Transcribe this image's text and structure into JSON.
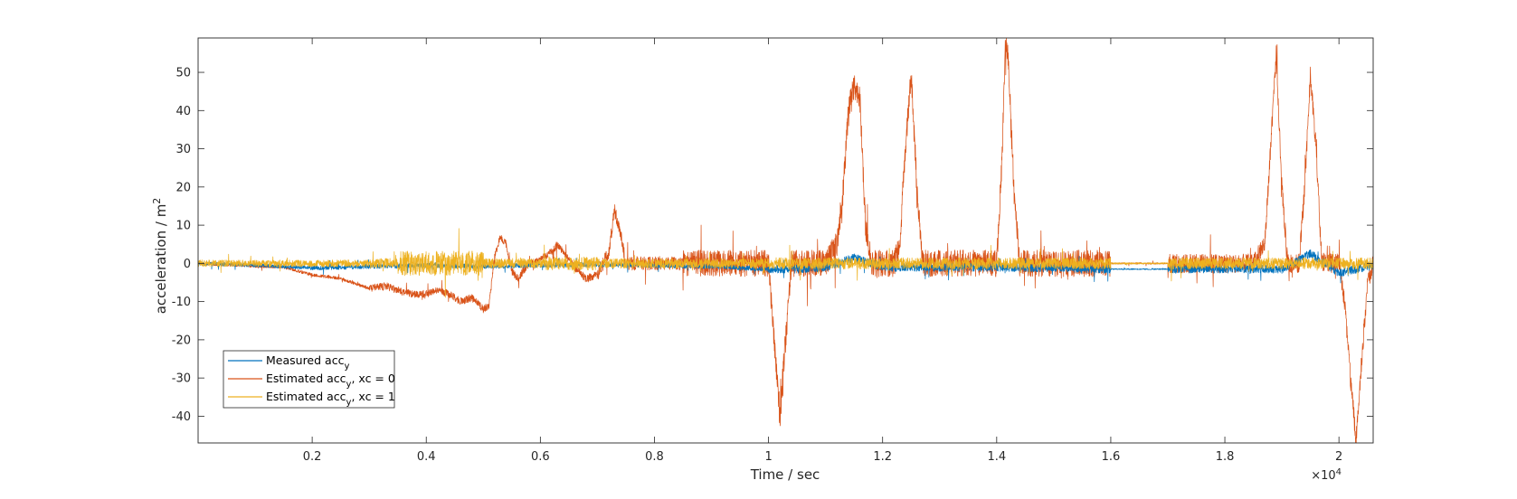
{
  "chart_data": {
    "type": "line",
    "xlabel": "Time / sec",
    "ylabel_base": "acceleration / m",
    "ylabel_sup": "2",
    "x_exponent_prefix": "×10",
    "x_exponent_power": "4",
    "xlim": [
      0,
      2.06
    ],
    "ylim": [
      -47,
      59
    ],
    "xticks": [
      0.2,
      0.4,
      0.6,
      0.8,
      1,
      1.2,
      1.4,
      1.6,
      1.8,
      2
    ],
    "xtick_labels": [
      "0.2",
      "0.4",
      "0.6",
      "0.8",
      "1",
      "1.2",
      "1.4",
      "1.6",
      "1.8",
      "2"
    ],
    "yticks": [
      -40,
      -30,
      -20,
      -10,
      0,
      10,
      20,
      30,
      40,
      50
    ],
    "ytick_labels": [
      "-40",
      "-30",
      "-20",
      "-10",
      "0",
      "10",
      "20",
      "30",
      "40",
      "50"
    ],
    "grid": false,
    "legend_position": "bottom-left",
    "legend": [
      {
        "base": "Measured acc",
        "sub": "y",
        "suffix": ""
      },
      {
        "base": "Estimated acc",
        "sub": "y",
        "suffix": ", xc = 0"
      },
      {
        "base": "Estimated acc",
        "sub": "y",
        "suffix": ", xc = 1"
      }
    ],
    "series": [
      {
        "color": "#0072BD",
        "noise_segments": [
          [
            0.0,
            0.2,
            0.5
          ],
          [
            0.2,
            1.0,
            0.6
          ],
          [
            1.0,
            1.6,
            1.1
          ],
          [
            1.6,
            1.7,
            0.15
          ],
          [
            1.7,
            2.06,
            1.1
          ]
        ],
        "points": [
          [
            0.0,
            0.0
          ],
          [
            0.1,
            -0.5
          ],
          [
            0.2,
            -1.2
          ],
          [
            0.3,
            -0.8
          ],
          [
            0.4,
            -0.5
          ],
          [
            0.5,
            -0.8
          ],
          [
            0.6,
            -0.5
          ],
          [
            0.7,
            -0.3
          ],
          [
            0.8,
            -0.5
          ],
          [
            0.9,
            -0.8
          ],
          [
            1.0,
            -1.5
          ],
          [
            1.05,
            -1.5
          ],
          [
            1.1,
            -1.0
          ],
          [
            1.15,
            1.5
          ],
          [
            1.2,
            -1.0
          ],
          [
            1.3,
            -1.0
          ],
          [
            1.4,
            -1.0
          ],
          [
            1.5,
            -1.2
          ],
          [
            1.55,
            -1.5
          ],
          [
            1.6,
            -1.5
          ],
          [
            1.7,
            -1.5
          ],
          [
            1.8,
            -1.5
          ],
          [
            1.9,
            -1.5
          ],
          [
            1.95,
            2.5
          ],
          [
            2.0,
            -2.5
          ],
          [
            2.06,
            -0.5
          ]
        ]
      },
      {
        "color": "#D95319",
        "noise_segments": [
          [
            0.0,
            0.3,
            0.4
          ],
          [
            0.3,
            0.7,
            1.0
          ],
          [
            0.7,
            0.85,
            1.8
          ],
          [
            0.85,
            1.6,
            3.5
          ],
          [
            1.6,
            1.7,
            0.2
          ],
          [
            1.7,
            2.06,
            2.5
          ]
        ],
        "points": [
          [
            0.0,
            0.0
          ],
          [
            0.15,
            -1.0
          ],
          [
            0.2,
            -3.0
          ],
          [
            0.25,
            -4.0
          ],
          [
            0.3,
            -6.5
          ],
          [
            0.33,
            -6.0
          ],
          [
            0.36,
            -7.5
          ],
          [
            0.38,
            -8.0
          ],
          [
            0.4,
            -8.0
          ],
          [
            0.42,
            -7.0
          ],
          [
            0.44,
            -8.0
          ],
          [
            0.46,
            -10.0
          ],
          [
            0.48,
            -9.0
          ],
          [
            0.5,
            -12.0
          ],
          [
            0.51,
            -11.0
          ],
          [
            0.52,
            2.0
          ],
          [
            0.53,
            7.0
          ],
          [
            0.54,
            5.0
          ],
          [
            0.55,
            -2.0
          ],
          [
            0.56,
            -4.0
          ],
          [
            0.58,
            0.0
          ],
          [
            0.6,
            1.0
          ],
          [
            0.62,
            3.0
          ],
          [
            0.63,
            5.0
          ],
          [
            0.64,
            3.0
          ],
          [
            0.66,
            -1.0
          ],
          [
            0.68,
            -4.0
          ],
          [
            0.7,
            -3.0
          ],
          [
            0.72,
            3.0
          ],
          [
            0.73,
            14.0
          ],
          [
            0.74,
            8.0
          ],
          [
            0.75,
            0.0
          ],
          [
            0.8,
            0.0
          ],
          [
            0.9,
            0.0
          ],
          [
            1.0,
            0.0
          ],
          [
            1.01,
            -20.0
          ],
          [
            1.02,
            -40.0
          ],
          [
            1.03,
            -20.0
          ],
          [
            1.04,
            0.0
          ],
          [
            1.1,
            0.0
          ],
          [
            1.12,
            5.0
          ],
          [
            1.13,
            18.0
          ],
          [
            1.14,
            40.0
          ],
          [
            1.15,
            46.0
          ],
          [
            1.16,
            44.0
          ],
          [
            1.17,
            10.0
          ],
          [
            1.18,
            0.0
          ],
          [
            1.22,
            0.0
          ],
          [
            1.23,
            5.0
          ],
          [
            1.24,
            30.0
          ],
          [
            1.25,
            50.0
          ],
          [
            1.26,
            20.0
          ],
          [
            1.27,
            0.0
          ],
          [
            1.4,
            0.0
          ],
          [
            1.41,
            30.0
          ],
          [
            1.415,
            59.0
          ],
          [
            1.42,
            55.0
          ],
          [
            1.43,
            20.0
          ],
          [
            1.44,
            0.0
          ],
          [
            1.6,
            0.0
          ],
          [
            1.7,
            0.0
          ],
          [
            1.85,
            0.0
          ],
          [
            1.87,
            5.0
          ],
          [
            1.88,
            30.0
          ],
          [
            1.89,
            55.0
          ],
          [
            1.9,
            20.0
          ],
          [
            1.91,
            0.0
          ],
          [
            1.93,
            0.0
          ],
          [
            1.94,
            20.0
          ],
          [
            1.95,
            50.0
          ],
          [
            1.96,
            30.0
          ],
          [
            1.97,
            0.0
          ],
          [
            2.0,
            0.0
          ],
          [
            2.01,
            -10.0
          ],
          [
            2.02,
            -30.0
          ],
          [
            2.03,
            -46.0
          ],
          [
            2.04,
            -25.0
          ],
          [
            2.05,
            -5.0
          ],
          [
            2.06,
            0.0
          ]
        ]
      },
      {
        "color": "#EDB120",
        "noise_segments": [
          [
            0.0,
            0.3,
            0.9
          ],
          [
            0.3,
            0.35,
            1.3
          ],
          [
            0.35,
            0.5,
            3.2
          ],
          [
            0.5,
            0.6,
            1.3
          ],
          [
            0.6,
            0.7,
            1.8
          ],
          [
            0.7,
            1.0,
            1.3
          ],
          [
            1.0,
            1.6,
            1.5
          ],
          [
            1.6,
            1.7,
            0.2
          ],
          [
            1.7,
            2.06,
            1.5
          ]
        ],
        "points": [
          [
            0.0,
            0.0
          ],
          [
            0.5,
            0.0
          ],
          [
            0.6,
            0.0
          ],
          [
            1.0,
            0.0
          ],
          [
            1.1,
            0.0
          ],
          [
            1.6,
            0.0
          ],
          [
            1.7,
            0.0
          ],
          [
            2.0,
            0.0
          ],
          [
            2.06,
            0.0
          ]
        ]
      }
    ]
  }
}
